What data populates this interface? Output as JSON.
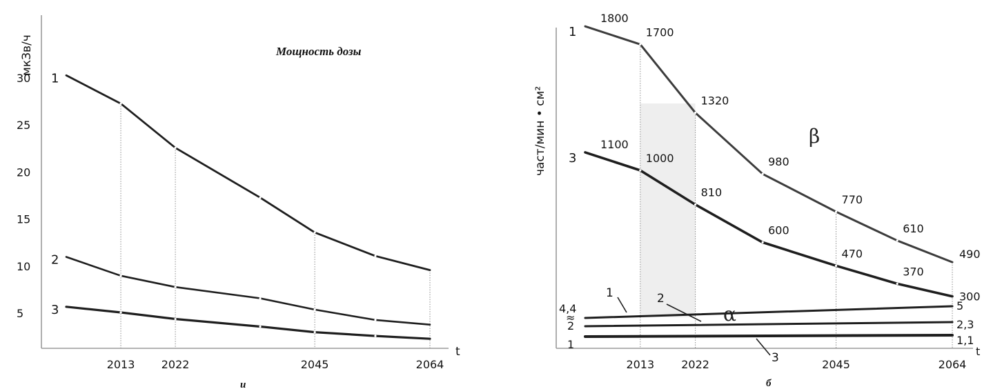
{
  "colors": {
    "axis": "#9a9a9a",
    "curve": "#1e1e1e",
    "curveLight": "#3c3c3c",
    "guide": "#8a8a8a",
    "shade": "#eeeeee"
  },
  "chart_data": [
    {
      "type": "line",
      "title": "Мощность дозы",
      "ylabel": "мкЗв/ч",
      "xlabel": "t",
      "caption": "и",
      "x_ticks": [
        2013,
        2022,
        2045,
        2064
      ],
      "y_ticks": [
        "5",
        "10",
        "15",
        "20",
        "25",
        "30"
      ],
      "ylim": [
        0,
        34
      ],
      "series": [
        {
          "name": "1",
          "x": [
            2004,
            2013,
            2022,
            2036,
            2045,
            2055,
            2064
          ],
          "values": [
            30.2,
            27.2,
            22.5,
            17.2,
            13.5,
            11.0,
            9.5
          ]
        },
        {
          "name": "2",
          "x": [
            2004,
            2013,
            2022,
            2036,
            2045,
            2055,
            2064
          ],
          "values": [
            10.9,
            8.9,
            7.7,
            6.5,
            5.3,
            4.2,
            3.7
          ]
        },
        {
          "name": "3",
          "x": [
            2004,
            2013,
            2022,
            2036,
            2045,
            2055,
            2064
          ],
          "values": [
            5.6,
            5.0,
            4.3,
            3.5,
            2.9,
            2.5,
            2.2
          ]
        }
      ]
    },
    {
      "type": "line",
      "ylabel": "част/мин • см²",
      "xlabel": "t",
      "caption": "б",
      "x_ticks": [
        2013,
        2022,
        2045,
        2064
      ],
      "groups": [
        {
          "name": "β",
          "series": [
            {
              "name": "1",
              "x": [
                2004,
                2013,
                2022,
                2033,
                2045,
                2055,
                2064
              ],
              "values": [
                1800,
                1700,
                1320,
                980,
                770,
                610,
                490
              ]
            },
            {
              "name": "3",
              "x": [
                2004,
                2013,
                2022,
                2033,
                2045,
                2055,
                2064
              ],
              "values": [
                1100,
                1000,
                810,
                600,
                470,
                370,
                300
              ]
            }
          ]
        },
        {
          "name": "α",
          "series": [
            {
              "name": "1",
              "x": [
                2004,
                2064
              ],
              "values": [
                4.4,
                5
              ]
            },
            {
              "name": "2",
              "x": [
                2004,
                2064
              ],
              "values": [
                2,
                2.3
              ]
            },
            {
              "name": "3",
              "x": [
                2004,
                2064
              ],
              "values": [
                1,
                1.1
              ]
            }
          ]
        }
      ],
      "labels": {
        "beta_1": [
          "1800",
          "1700",
          "1320",
          "980",
          "770",
          "610",
          "490"
        ],
        "beta_3": [
          "1100",
          "1000",
          "810",
          "600",
          "470",
          "370",
          "300"
        ],
        "alpha_left": [
          "4,4",
          "2",
          "1"
        ],
        "alpha_right": [
          "5",
          "2,3",
          "1,1"
        ],
        "break_mark": "≈"
      }
    }
  ]
}
